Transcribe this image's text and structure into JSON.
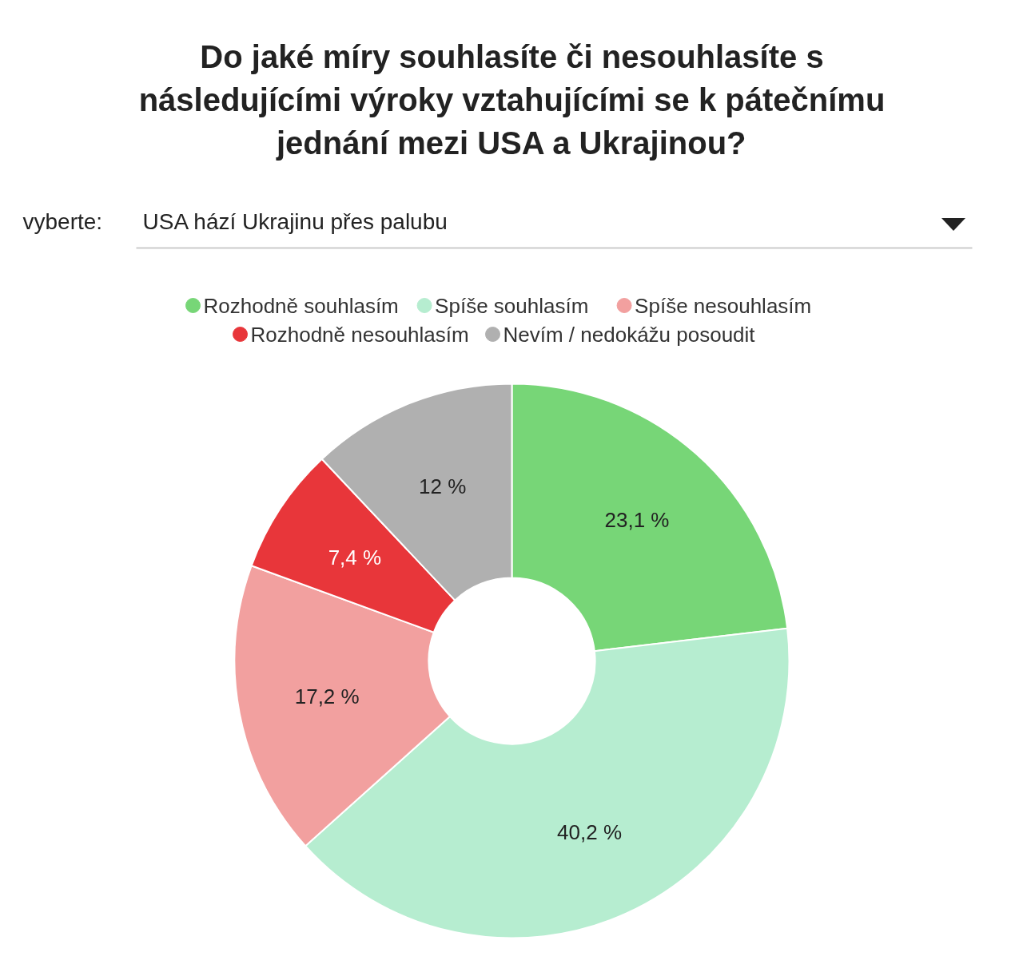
{
  "chart_data": {
    "type": "donut",
    "title": "Do jaké míry souhlasíte či nesouhlasíte s následujícími výroky vztahujícími se k pátečnímu jednání mezi USA a Ukrajinou?",
    "subtitle": "USA hází Ukrajinu přes palubu",
    "annotations": [
      "vyberte:"
    ],
    "categories": [
      "Rozhodně souhlasím",
      "Spíše souhlasím",
      "Spíše nesouhlasím",
      "Rozhodně nesouhlasím",
      "Nevím / nedokážu posoudit"
    ],
    "values": [
      23.1,
      40.2,
      17.2,
      7.4,
      12
    ],
    "value_labels": [
      "23,1 %",
      "40,2 %",
      "17,2 %",
      "7,4 %",
      "12 %"
    ],
    "colors": [
      "#77d677",
      "#b6edd0",
      "#f2a09f",
      "#e8363a",
      "#b0b0b0"
    ],
    "legend": "top"
  }
}
